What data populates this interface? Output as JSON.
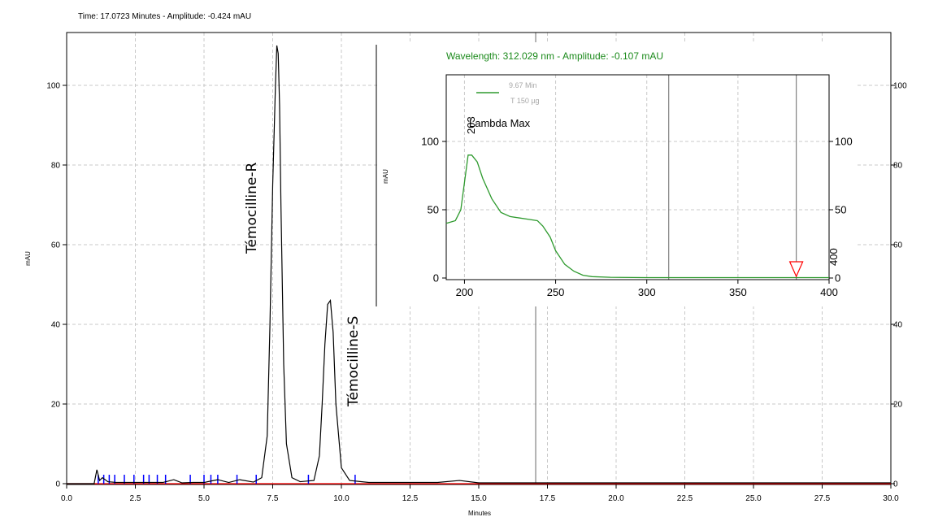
{
  "status": {
    "text": "Time:  17.0723 Minutes - Amplitude:  -0.424 mAU"
  },
  "colors": {
    "trace": "#000000",
    "baseline": "#ff0000",
    "events": "#0000ff",
    "spectrum": "#2e9a2e",
    "grid": "#c8c8c8",
    "cursor": "#808080",
    "status_green": "#1b8a1b",
    "marker": "#ff0000"
  },
  "chart_data": [
    {
      "type": "line",
      "name": "chromatogram",
      "xlabel": "Minutes",
      "ylabel": "mAU",
      "xlim": [
        0,
        30
      ],
      "ylim": [
        0,
        112
      ],
      "x_ticks": [
        0,
        2.5,
        5,
        7.5,
        10,
        12.5,
        15,
        17.5,
        20,
        22.5,
        25,
        27.5,
        30
      ],
      "x_tick_labels": [
        "0.0",
        "2.5",
        "5.0",
        "7.5",
        "10.0",
        "12.5",
        "15.0",
        "17.5",
        "20.0",
        "22.5",
        "25.0",
        "27.5",
        "30.0"
      ],
      "y_ticks": [
        0,
        20,
        40,
        60,
        80,
        100
      ],
      "y_tick_labels": [
        "0",
        "20",
        "40",
        "60",
        "80",
        "100"
      ],
      "grid": true,
      "cursor_x": 17.0723,
      "series": [
        {
          "x": [
            0,
            1.0,
            1.1,
            1.2,
            1.3,
            1.5,
            1.8,
            2.3,
            3.0,
            3.5,
            3.9,
            4.2,
            4.6,
            5.0,
            5.5,
            5.9,
            6.3,
            6.8,
            7.1,
            7.3,
            7.4,
            7.5,
            7.6,
            7.65,
            7.7,
            7.75,
            7.8,
            7.9,
            8.0,
            8.2,
            8.5,
            9.0,
            9.2,
            9.3,
            9.4,
            9.5,
            9.6,
            9.7,
            9.8,
            10.0,
            10.3,
            11.0,
            13.0,
            13.5,
            14.3,
            15.0,
            30.0
          ],
          "y": [
            0,
            0,
            3.5,
            0.8,
            1.5,
            0.5,
            0.3,
            0.3,
            0.3,
            0.3,
            1.0,
            0.2,
            0.3,
            0.3,
            1.0,
            0.3,
            1.0,
            0.4,
            1.5,
            12,
            40,
            75,
            100,
            110,
            108,
            95,
            70,
            30,
            10,
            1.5,
            0.5,
            0.8,
            7,
            20,
            35,
            45,
            46,
            38,
            20,
            4,
            0.8,
            0.3,
            0.3,
            0.3,
            0.8,
            0.2,
            0.2
          ]
        }
      ],
      "baseline": {
        "x": [
          0,
          30
        ],
        "y": [
          0,
          0
        ]
      },
      "event_marks_x": [
        1.15,
        1.35,
        1.55,
        1.75,
        2.1,
        2.45,
        2.8,
        3.0,
        3.3,
        3.6,
        4.5,
        5.0,
        5.25,
        5.5,
        6.2,
        6.9,
        8.8,
        10.5
      ],
      "annotations": [
        {
          "text": "Témocilline-R",
          "x": 7.0,
          "y": 85
        },
        {
          "text": "Témocilline-S",
          "x": 10.0,
          "y": 40
        }
      ]
    },
    {
      "type": "line",
      "name": "uv-spectrum-inset",
      "title": "Wavelength:  312.029 nm - Amplitude:  -0.107 mAU",
      "ylabel": "mAU",
      "xlim": [
        190,
        400
      ],
      "ylim": [
        -2,
        150
      ],
      "x_ticks": [
        200,
        250,
        300,
        350,
        400
      ],
      "x_tick_labels": [
        "200",
        "250",
        "300",
        "350",
        "400"
      ],
      "y_ticks": [
        0,
        50,
        100
      ],
      "y_tick_labels": [
        "0",
        "50",
        "100"
      ],
      "grid": true,
      "cursor_x": [
        312.029,
        382
      ],
      "legend": [
        "9.67 Min",
        "T 150 µg"
      ],
      "peak_label": "203",
      "lambda_label": "Lambda Max",
      "end_label": "400",
      "marker_x": 382,
      "series": [
        {
          "name": "9.67 Min",
          "x": [
            190,
            195,
            198,
            200,
            202,
            204,
            207,
            210,
            215,
            220,
            225,
            230,
            235,
            240,
            243,
            247,
            250,
            255,
            260,
            265,
            270,
            280,
            300,
            350,
            400
          ],
          "y": [
            40,
            42,
            50,
            70,
            90,
            90,
            85,
            73,
            58,
            48,
            45,
            44,
            43,
            42,
            38,
            30,
            20,
            10,
            5,
            2,
            1,
            0.5,
            0.3,
            0.3,
            0.3
          ]
        }
      ]
    }
  ]
}
